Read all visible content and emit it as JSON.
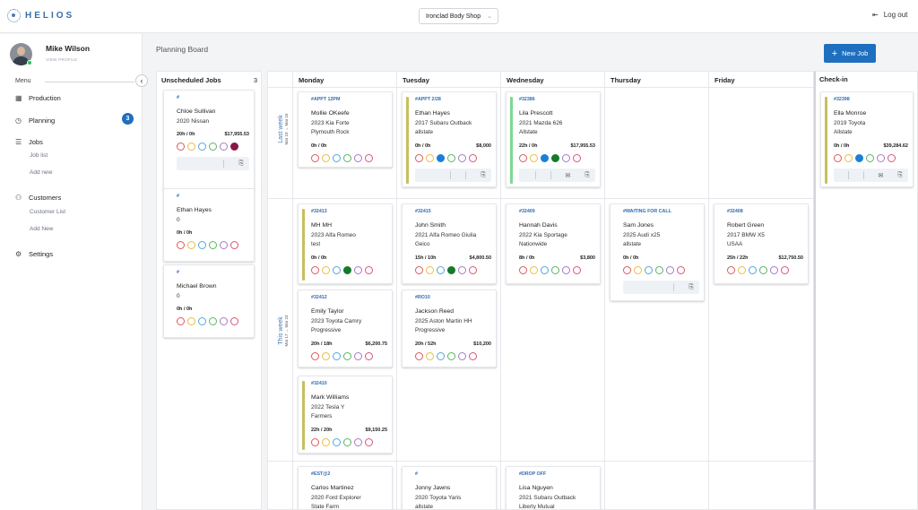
{
  "app": {
    "logo": "HELIOS",
    "shop": "Ironclad Body Shop",
    "logout": "Log out"
  },
  "user": {
    "name": "Mike Wilson",
    "view_profile": "VIEW PROFILE"
  },
  "sidebar": {
    "menu_label": "Menu",
    "production": "Production",
    "planning": "Planning",
    "planning_badge": "3",
    "jobs": "Jobs",
    "job_list": "Job list",
    "add_new": "Add new",
    "customers": "Customers",
    "customer_list": "Customer List",
    "add_new_customer": "Add New",
    "settings": "Settings"
  },
  "board": {
    "title": "Planning Board",
    "new_job": "New Job",
    "unscheduled_label": "Unscheduled Jobs",
    "unscheduled_count": "3",
    "days": [
      "Monday",
      "Tuesday",
      "Wednesday",
      "Thursday",
      "Friday"
    ],
    "checkin_label": "Check-in",
    "weeks": [
      {
        "label": "Last week",
        "dates": "Mar 10 → Mar 16"
      },
      {
        "label": "This week",
        "dates": "Mar 17 → Mar 23"
      }
    ]
  },
  "status_colors": [
    "#e0585b",
    "#ebbd3d",
    "#4fa8e0",
    "#58b85a",
    "#a679c7",
    "#d9537a"
  ],
  "unscheduled": [
    {
      "tag": "#",
      "name": "Chloe Sullivan",
      "vehicle": "2020 Nissan",
      "insurance": "",
      "hours": "20h / 0h",
      "amount": "$17,955.53"
    },
    {
      "tag": "#",
      "name": "Ethan Hayes",
      "vehicle": "0",
      "insurance": "",
      "hours": "0h / 0h",
      "amount": ""
    },
    {
      "tag": "#",
      "name": "Michael Brown",
      "vehicle": "0",
      "insurance": "",
      "hours": "0h / 0h",
      "amount": ""
    }
  ],
  "jobs": {
    "mon_w1": {
      "tag": "#APPT 12PM",
      "name": "Mollie OKeefe",
      "vehicle": "2023 Kia Forte",
      "insurance": "Plymouth Rock",
      "hours": "0h / 0h",
      "amount": ""
    },
    "tue_w1": {
      "tag": "#APPT 2/28",
      "name": "Ethan Hayes",
      "vehicle": "2017 Subaru Outback",
      "insurance": "allstate",
      "hours": "0h / 0h",
      "amount": "$8,000"
    },
    "wed_w1": {
      "tag": "#32386",
      "name": "Lila Prescott",
      "vehicle": "2021 Mazda 626",
      "insurance": "Allstate",
      "hours": "22h / 0h",
      "amount": "$17,955.53"
    },
    "mon_a": {
      "tag": "#32413",
      "name": "MH MH",
      "vehicle": "2023 Alfa Romeo",
      "insurance": "test",
      "hours": "0h / 0h",
      "amount": ""
    },
    "mon_b": {
      "tag": "#32412",
      "name": "Emily Taylor",
      "vehicle": "2023 Toyota Camry",
      "insurance": "Progressive",
      "hours": "20h / 18h",
      "amount": "$6,200.75"
    },
    "mon_c": {
      "tag": "#32410",
      "name": "Mark Williams",
      "vehicle": "2022 Tesla Y",
      "insurance": "Farmers",
      "hours": "22h / 20h",
      "amount": "$9,150.25"
    },
    "tue_a": {
      "tag": "#32415",
      "name": "John Smith",
      "vehicle": "2021 Alfa Romeo Giulia",
      "insurance": "Geico",
      "hours": "15h / 10h",
      "amount": "$4,800.50"
    },
    "tue_b": {
      "tag": "#RO10",
      "name": "Jackson Reed",
      "vehicle": "2025 Aston Martin HH",
      "insurance": "Progressive",
      "hours": "20h / 52h",
      "amount": "$10,200"
    },
    "wed_a": {
      "tag": "#32409",
      "name": "Hannah Davis",
      "vehicle": "2022 Kia Sportage",
      "insurance": "Nationwide",
      "hours": "8h / 0h",
      "amount": "$3,800"
    },
    "thu_a": {
      "tag": "#WAITING FOR CALL",
      "name": "Sam Jones",
      "vehicle": "2025 Audi x25",
      "insurance": "allstate",
      "hours": "0h / 0h",
      "amount": ""
    },
    "fri_a": {
      "tag": "#32408",
      "name": "Robert Green",
      "vehicle": "2017 BMW X5",
      "insurance": "USAA",
      "hours": "25h / 22h",
      "amount": "$12,750.50"
    },
    "mon_w3": {
      "tag": "#EST@2",
      "name": "Carlos Martinez",
      "vehicle": "2020 Ford Explorer",
      "insurance": "State Farm"
    },
    "tue_w3": {
      "tag": "#",
      "name": "Jonny Jawns",
      "vehicle": "2020 Toyota Yaris",
      "insurance": "allstate"
    },
    "wed_w3": {
      "tag": "#DROP OFF",
      "name": "Lisa Nguyen",
      "vehicle": "2021 Subaru Outback",
      "insurance": "Liberty Mutual"
    },
    "checkin": {
      "tag": "#32398",
      "name": "Ella Monroe",
      "vehicle": "2019 Toyota",
      "insurance": "Allstate",
      "hours": "0h / 0h",
      "amount": "$39,284.62"
    }
  }
}
